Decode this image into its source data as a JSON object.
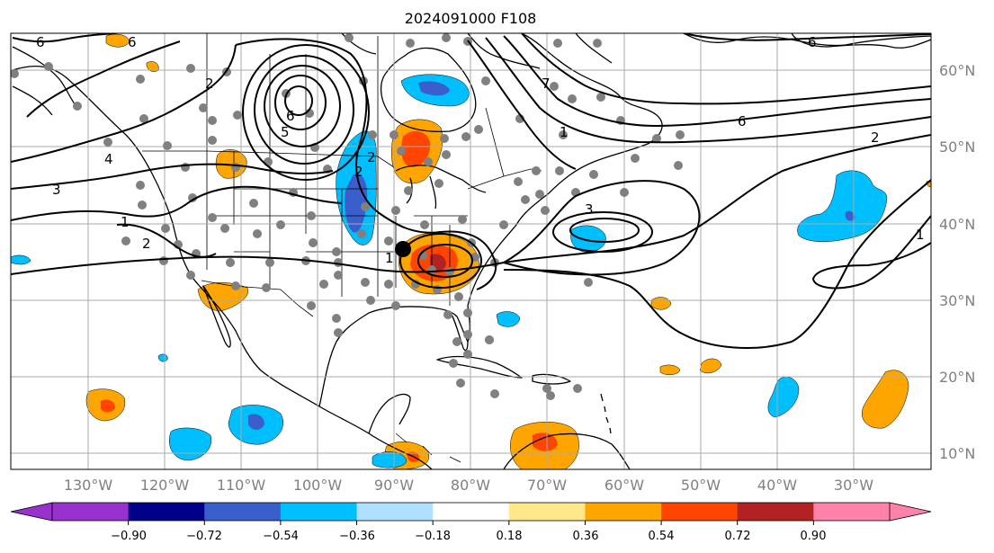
{
  "title": "2024091000 F108",
  "map": {
    "projection": "PlateCarree",
    "lon_range": [
      -140,
      -20
    ],
    "lat_range": [
      8,
      65
    ],
    "longitude_labels": [
      "130°W",
      "120°W",
      "110°W",
      "100°W",
      "90°W",
      "80°W",
      "70°W",
      "60°W",
      "50°W",
      "40°W",
      "30°W"
    ],
    "latitude_labels": [
      "60°N",
      "50°N",
      "40°N",
      "30°N",
      "20°N",
      "10°N"
    ],
    "grid": true,
    "marker": {
      "lon": -92,
      "lat": 36.5,
      "color": "#000000"
    }
  },
  "colorbar": {
    "tick_labels": [
      "−0.90",
      "−0.72",
      "−0.54",
      "−0.36",
      "−0.18",
      "0.18",
      "0.36",
      "0.54",
      "0.72",
      "0.90"
    ],
    "colors": [
      "#9932cc",
      "#00008b",
      "#3a5fcd",
      "#00bfff",
      "#b0e0ff",
      "#ffffff",
      "#ffe88a",
      "#ffa500",
      "#ff4500",
      "#b22222",
      "#ff82ab"
    ],
    "extend": "both"
  },
  "contour_labels": [
    {
      "text": "6"
    },
    {
      "text": "6"
    },
    {
      "text": "2"
    },
    {
      "text": "4"
    },
    {
      "text": "3"
    },
    {
      "text": "1"
    },
    {
      "text": "2"
    },
    {
      "text": "6"
    },
    {
      "text": "5"
    },
    {
      "text": "2"
    },
    {
      "text": "1"
    },
    {
      "text": "1"
    },
    {
      "text": "3"
    },
    {
      "text": "6"
    },
    {
      "text": "2"
    },
    {
      "text": "1"
    },
    {
      "text": "7"
    },
    {
      "text": "2"
    },
    {
      "text": "6"
    }
  ],
  "station_color": "#808080"
}
